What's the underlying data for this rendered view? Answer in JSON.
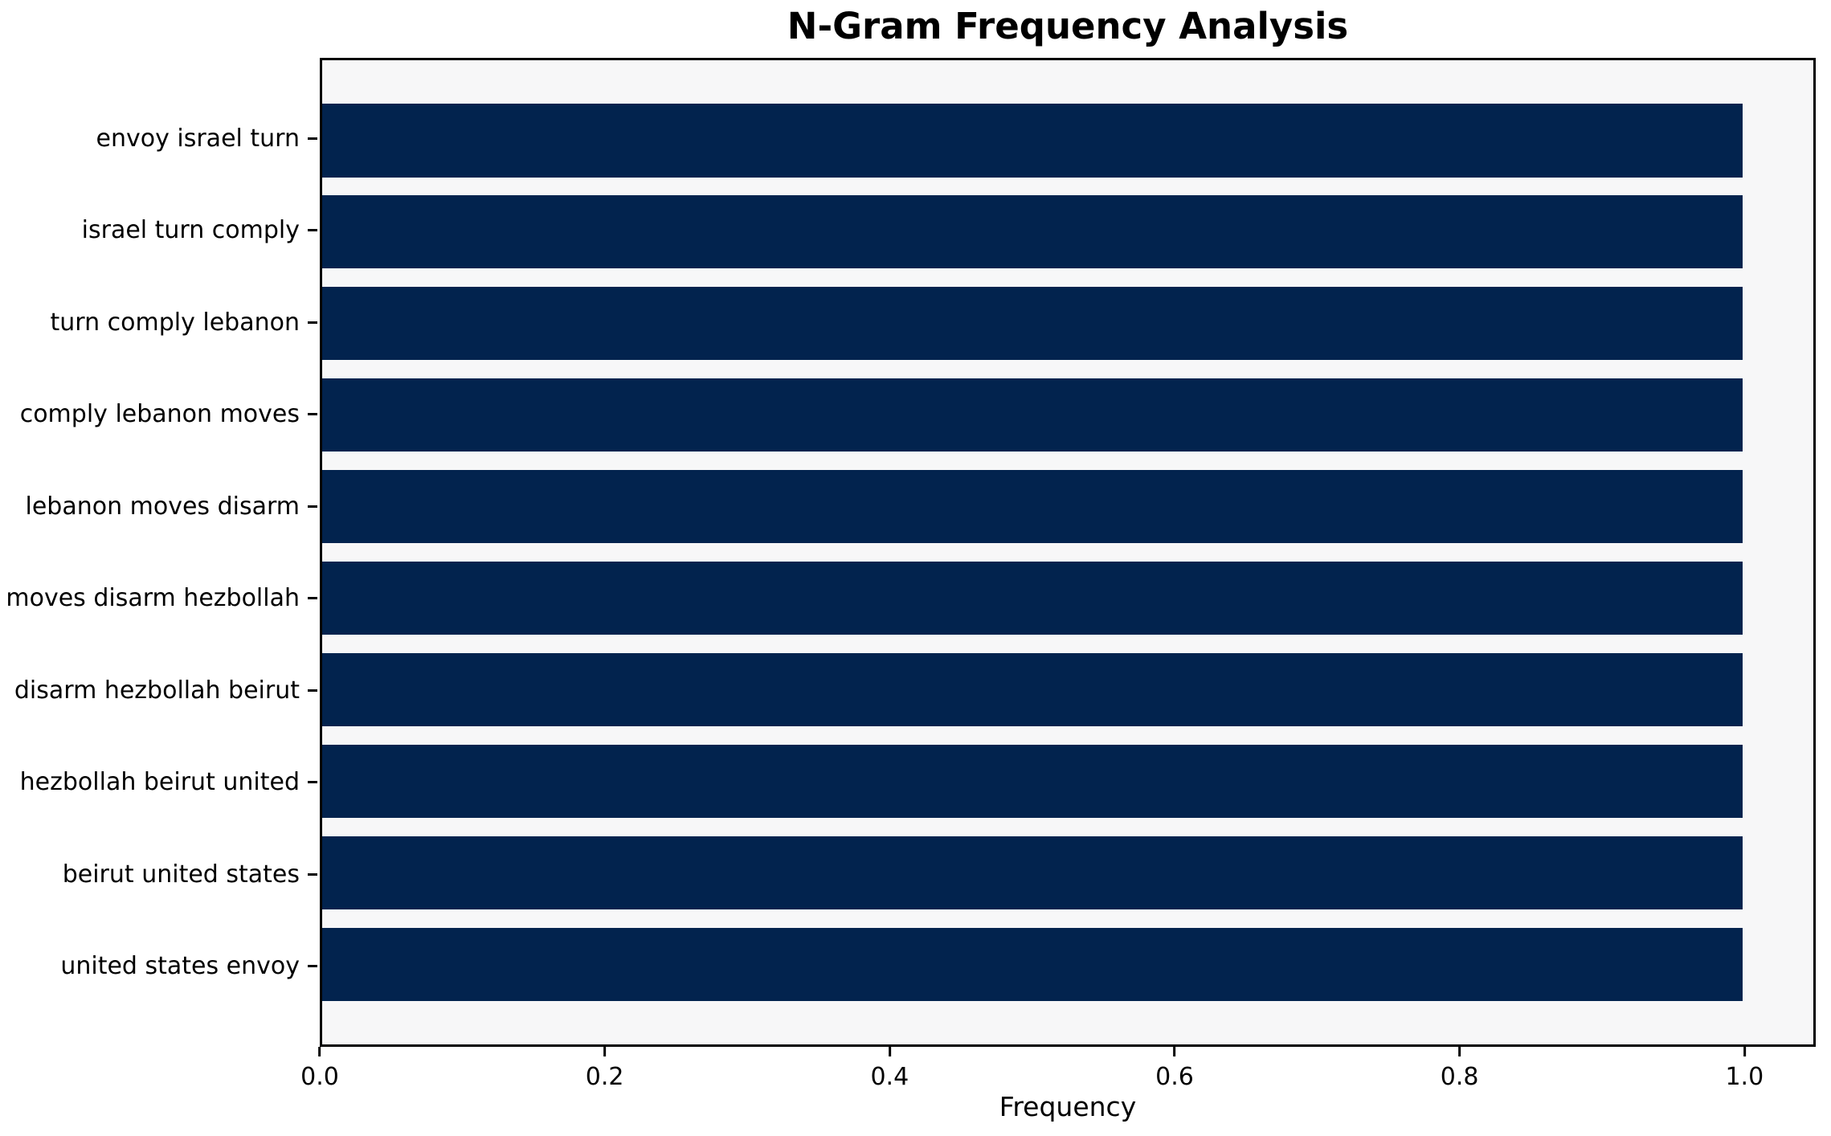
{
  "chart_data": {
    "type": "bar",
    "orientation": "horizontal",
    "title": "N-Gram Frequency Analysis",
    "xlabel": "Frequency",
    "ylabel": "",
    "categories": [
      "envoy israel turn",
      "israel turn comply",
      "turn comply lebanon",
      "comply lebanon moves",
      "lebanon moves disarm",
      "moves disarm hezbollah",
      "disarm hezbollah beirut",
      "hezbollah beirut united",
      "beirut united states",
      "united states envoy"
    ],
    "values": [
      1.0,
      1.0,
      1.0,
      1.0,
      1.0,
      1.0,
      1.0,
      1.0,
      1.0,
      1.0
    ],
    "xlim": [
      0,
      1.05
    ],
    "x_ticks": [
      0.0,
      0.2,
      0.4,
      0.6,
      0.8,
      1.0
    ],
    "x_tick_labels": [
      "0.0",
      "0.2",
      "0.4",
      "0.6",
      "0.8",
      "1.0"
    ],
    "grid": false,
    "legend": null,
    "bar_color": "#02234e",
    "plot_background": "#f7f7f8",
    "figure_background": "#ffffff"
  }
}
